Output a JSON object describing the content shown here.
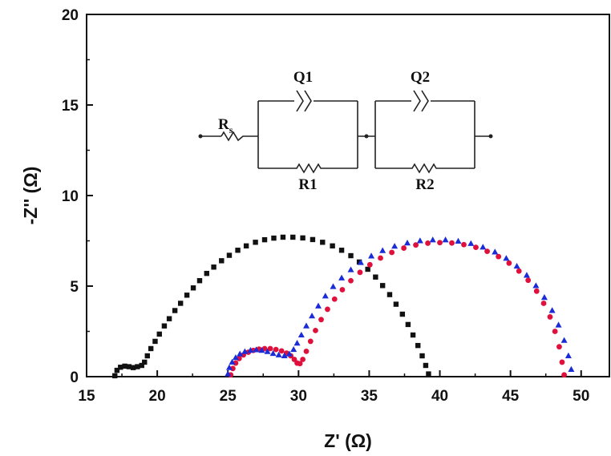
{
  "chart_data": {
    "type": "scatter",
    "title": "",
    "xlabel": "Z' (Ω)",
    "ylabel": "-Z'' (Ω)",
    "xlim": [
      15,
      52
    ],
    "ylim": [
      0,
      20
    ],
    "x_ticks": [
      15,
      20,
      25,
      30,
      35,
      40,
      45,
      50
    ],
    "y_ticks": [
      0,
      5,
      10,
      15,
      20
    ],
    "grid": false,
    "legend": "none",
    "series": [
      {
        "color": "#111111",
        "marker": "square",
        "points": [
          [
            17.0,
            0.05
          ],
          [
            17.15,
            0.35
          ],
          [
            17.4,
            0.52
          ],
          [
            17.7,
            0.58
          ],
          [
            18.0,
            0.55
          ],
          [
            18.3,
            0.5
          ],
          [
            18.6,
            0.55
          ],
          [
            18.9,
            0.62
          ],
          [
            19.1,
            0.8
          ],
          [
            19.3,
            1.15
          ],
          [
            19.55,
            1.55
          ],
          [
            19.85,
            1.95
          ],
          [
            20.15,
            2.35
          ],
          [
            20.5,
            2.8
          ],
          [
            20.85,
            3.2
          ],
          [
            21.25,
            3.65
          ],
          [
            21.65,
            4.05
          ],
          [
            22.1,
            4.5
          ],
          [
            22.55,
            4.9
          ],
          [
            23.0,
            5.3
          ],
          [
            23.5,
            5.7
          ],
          [
            24.0,
            6.05
          ],
          [
            24.55,
            6.4
          ],
          [
            25.1,
            6.7
          ],
          [
            25.7,
            6.98
          ],
          [
            26.3,
            7.22
          ],
          [
            26.95,
            7.42
          ],
          [
            27.6,
            7.56
          ],
          [
            28.25,
            7.65
          ],
          [
            28.9,
            7.7
          ],
          [
            29.6,
            7.7
          ],
          [
            30.3,
            7.66
          ],
          [
            31.0,
            7.57
          ],
          [
            31.7,
            7.42
          ],
          [
            32.4,
            7.22
          ],
          [
            33.05,
            6.98
          ],
          [
            33.7,
            6.68
          ],
          [
            34.3,
            6.33
          ],
          [
            34.9,
            5.93
          ],
          [
            35.45,
            5.5
          ],
          [
            35.95,
            5.03
          ],
          [
            36.45,
            4.53
          ],
          [
            36.9,
            4.0
          ],
          [
            37.35,
            3.45
          ],
          [
            37.75,
            2.88
          ],
          [
            38.1,
            2.3
          ],
          [
            38.45,
            1.72
          ],
          [
            38.75,
            1.15
          ],
          [
            39.0,
            0.62
          ],
          [
            39.2,
            0.15
          ]
        ]
      },
      {
        "color": "#e0103c",
        "marker": "circle",
        "points": [
          [
            25.2,
            0.1
          ],
          [
            25.35,
            0.45
          ],
          [
            25.55,
            0.75
          ],
          [
            25.8,
            1.0
          ],
          [
            26.1,
            1.2
          ],
          [
            26.45,
            1.35
          ],
          [
            26.8,
            1.45
          ],
          [
            27.2,
            1.52
          ],
          [
            27.6,
            1.55
          ],
          [
            28.0,
            1.55
          ],
          [
            28.4,
            1.5
          ],
          [
            28.8,
            1.42
          ],
          [
            29.15,
            1.3
          ],
          [
            29.45,
            1.15
          ],
          [
            29.7,
            0.95
          ],
          [
            29.9,
            0.75
          ],
          [
            30.1,
            0.72
          ],
          [
            30.3,
            0.95
          ],
          [
            30.55,
            1.4
          ],
          [
            30.85,
            1.95
          ],
          [
            31.2,
            2.55
          ],
          [
            31.6,
            3.15
          ],
          [
            32.05,
            3.72
          ],
          [
            32.55,
            4.28
          ],
          [
            33.1,
            4.8
          ],
          [
            33.7,
            5.3
          ],
          [
            34.35,
            5.76
          ],
          [
            35.05,
            6.18
          ],
          [
            35.8,
            6.55
          ],
          [
            36.6,
            6.86
          ],
          [
            37.45,
            7.1
          ],
          [
            38.3,
            7.27
          ],
          [
            39.15,
            7.37
          ],
          [
            40.0,
            7.4
          ],
          [
            40.85,
            7.38
          ],
          [
            41.7,
            7.29
          ],
          [
            42.55,
            7.14
          ],
          [
            43.35,
            6.92
          ],
          [
            44.15,
            6.63
          ],
          [
            44.9,
            6.27
          ],
          [
            45.6,
            5.83
          ],
          [
            46.25,
            5.32
          ],
          [
            46.85,
            4.72
          ],
          [
            47.35,
            4.05
          ],
          [
            47.8,
            3.3
          ],
          [
            48.15,
            2.5
          ],
          [
            48.45,
            1.65
          ],
          [
            48.65,
            0.8
          ],
          [
            48.8,
            0.1
          ]
        ]
      },
      {
        "color": "#1a2bd8",
        "marker": "triangle",
        "points": [
          [
            25.0,
            0.15
          ],
          [
            25.1,
            0.5
          ],
          [
            25.3,
            0.8
          ],
          [
            25.55,
            1.05
          ],
          [
            25.85,
            1.25
          ],
          [
            26.2,
            1.38
          ],
          [
            26.6,
            1.45
          ],
          [
            27.0,
            1.48
          ],
          [
            27.4,
            1.45
          ],
          [
            27.8,
            1.38
          ],
          [
            28.2,
            1.28
          ],
          [
            28.6,
            1.2
          ],
          [
            29.0,
            1.15
          ],
          [
            29.35,
            1.25
          ],
          [
            29.65,
            1.5
          ],
          [
            29.9,
            1.85
          ],
          [
            30.2,
            2.3
          ],
          [
            30.55,
            2.8
          ],
          [
            30.95,
            3.35
          ],
          [
            31.4,
            3.9
          ],
          [
            31.9,
            4.45
          ],
          [
            32.45,
            4.97
          ],
          [
            33.05,
            5.45
          ],
          [
            33.7,
            5.9
          ],
          [
            34.4,
            6.3
          ],
          [
            35.15,
            6.66
          ],
          [
            35.95,
            6.96
          ],
          [
            36.8,
            7.2
          ],
          [
            37.7,
            7.38
          ],
          [
            38.6,
            7.5
          ],
          [
            39.5,
            7.55
          ],
          [
            40.4,
            7.55
          ],
          [
            41.3,
            7.48
          ],
          [
            42.2,
            7.35
          ],
          [
            43.05,
            7.15
          ],
          [
            43.9,
            6.88
          ],
          [
            44.7,
            6.53
          ],
          [
            45.45,
            6.1
          ],
          [
            46.15,
            5.6
          ],
          [
            46.8,
            5.02
          ],
          [
            47.4,
            4.37
          ],
          [
            47.95,
            3.65
          ],
          [
            48.4,
            2.85
          ],
          [
            48.8,
            2.0
          ],
          [
            49.1,
            1.15
          ],
          [
            49.3,
            0.4
          ]
        ]
      }
    ]
  },
  "circuit": {
    "rs_label": "R",
    "rs_sub": "s",
    "q1_label": "Q1",
    "r1_label": "R1",
    "q2_label": "Q2",
    "r2_label": "R2"
  }
}
